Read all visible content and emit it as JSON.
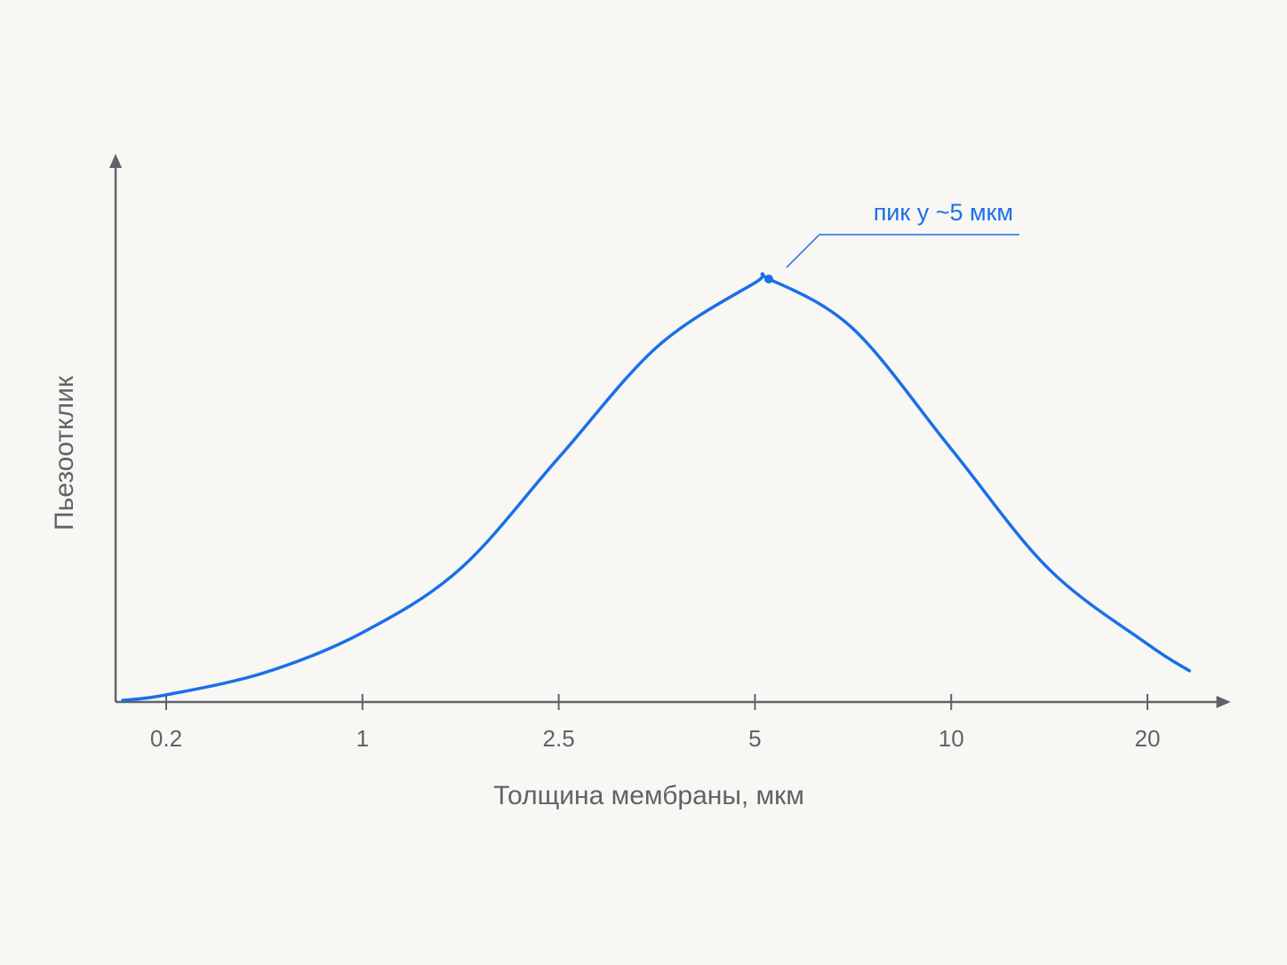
{
  "chart_data": {
    "type": "line",
    "x_label": "Толщина мембраны, мкм",
    "y_label": "Пьезоотклик",
    "xscale": "log",
    "xlim": [
      0.14,
      26
    ],
    "xticks": [
      0.2,
      1,
      2.5,
      5,
      10,
      20
    ],
    "ylim": [
      0,
      1
    ],
    "series": [
      {
        "name": "Пьезоотклик",
        "color": "#1a6fe8",
        "x": [
          0.14,
          0.2,
          0.45,
          1,
          1.58,
          2.5,
          3.54,
          5,
          5.25,
          7.07,
          10,
          14.1,
          20,
          23.2
        ],
        "values": [
          0.003,
          0.013,
          0.054,
          0.127,
          0.244,
          0.447,
          0.65,
          0.767,
          0.774,
          0.683,
          0.463,
          0.244,
          0.106,
          0.057
        ]
      }
    ],
    "annotations": [
      {
        "text": "пик у ~5 мкм",
        "series": 0,
        "index": 8
      }
    ]
  }
}
